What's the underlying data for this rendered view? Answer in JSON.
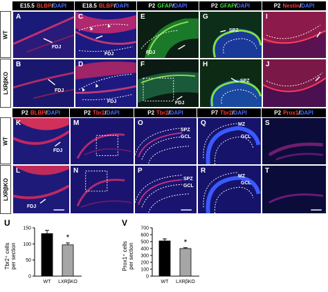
{
  "row_labels": {
    "wt": "WT",
    "ko": "LXRβKO"
  },
  "top_headers": [
    {
      "stage": "E15.5",
      "marker": "BLBP",
      "sep": "/",
      "dapi": "DAPI",
      "color": "#ff3a3a"
    },
    {
      "stage": "E18.5",
      "marker": "BLBP",
      "sep": "/",
      "dapi": "DAPI",
      "color": "#ff3a3a"
    },
    {
      "stage": "P2",
      "marker": "GFAP",
      "sep": "/",
      "dapi": "DAPI",
      "color": "#37e637"
    },
    {
      "stage": "P2",
      "marker": "GFAP",
      "sep": "/",
      "dapi": "DAPI",
      "color": "#37e637"
    },
    {
      "stage": "P2",
      "marker": "Nestin",
      "sep": "/",
      "dapi": "DAPI",
      "color": "#ff3a3a"
    }
  ],
  "bottom_headers": [
    {
      "stage": "P2",
      "marker": "BLBP",
      "sep": "/",
      "dapi": "DAPI",
      "color": "#ff3a3a"
    },
    {
      "stage": "P2",
      "marker": "Tbr2",
      "sep": "/",
      "dapi": "DAPI",
      "color": "#ff3a3a"
    },
    {
      "stage": "P2",
      "marker": "Tbr2",
      "sep": "/",
      "dapi": "DAPI",
      "color": "#ff3a3a"
    },
    {
      "stage": "P7",
      "marker": "Tbr2",
      "sep": "/",
      "dapi": "DAPI",
      "color": "#ff3a3a"
    },
    {
      "stage": "P2",
      "marker": "Prox1",
      "sep": "/",
      "dapi": "DAPI",
      "color": "#ff3a3a"
    }
  ],
  "panel_letters": {
    "top_wt": [
      "A",
      "C",
      "E",
      "G",
      "I"
    ],
    "top_ko": [
      "B",
      "D",
      "F",
      "H",
      "J"
    ],
    "bot_wt": [
      "K",
      "M",
      "O",
      "Q",
      "S"
    ],
    "bot_ko": [
      "L",
      "N",
      "P",
      "R",
      "T"
    ]
  },
  "panel_labels": {
    "fdj": "FDJ",
    "spz": "SPZ",
    "gcl": "GCL",
    "mz": "MZ"
  },
  "chart_data": [
    {
      "type": "bar",
      "panel": "U",
      "ylabel_line1": "Tbr2⁺ cells",
      "ylabel_line2": "per section",
      "categories": [
        "WT",
        "LXRβKO"
      ],
      "values": [
        132,
        97
      ],
      "errors": [
        10,
        6
      ],
      "bar_colors": [
        "#000000",
        "#a6a6a6"
      ],
      "yticks": [
        0,
        50,
        100,
        150
      ],
      "ylim": [
        0,
        150
      ],
      "significance": "*"
    },
    {
      "type": "bar",
      "panel": "V",
      "ylabel_line1": "Prox1⁺ cells",
      "ylabel_line2": "per section",
      "categories": [
        "WT",
        "LXRβKO"
      ],
      "values": [
        510,
        400
      ],
      "errors": [
        30,
        12
      ],
      "bar_colors": [
        "#000000",
        "#a6a6a6"
      ],
      "yticks": [
        0,
        100,
        200,
        300,
        400,
        500,
        600,
        700
      ],
      "ylim": [
        0,
        700
      ],
      "significance": "*"
    }
  ]
}
